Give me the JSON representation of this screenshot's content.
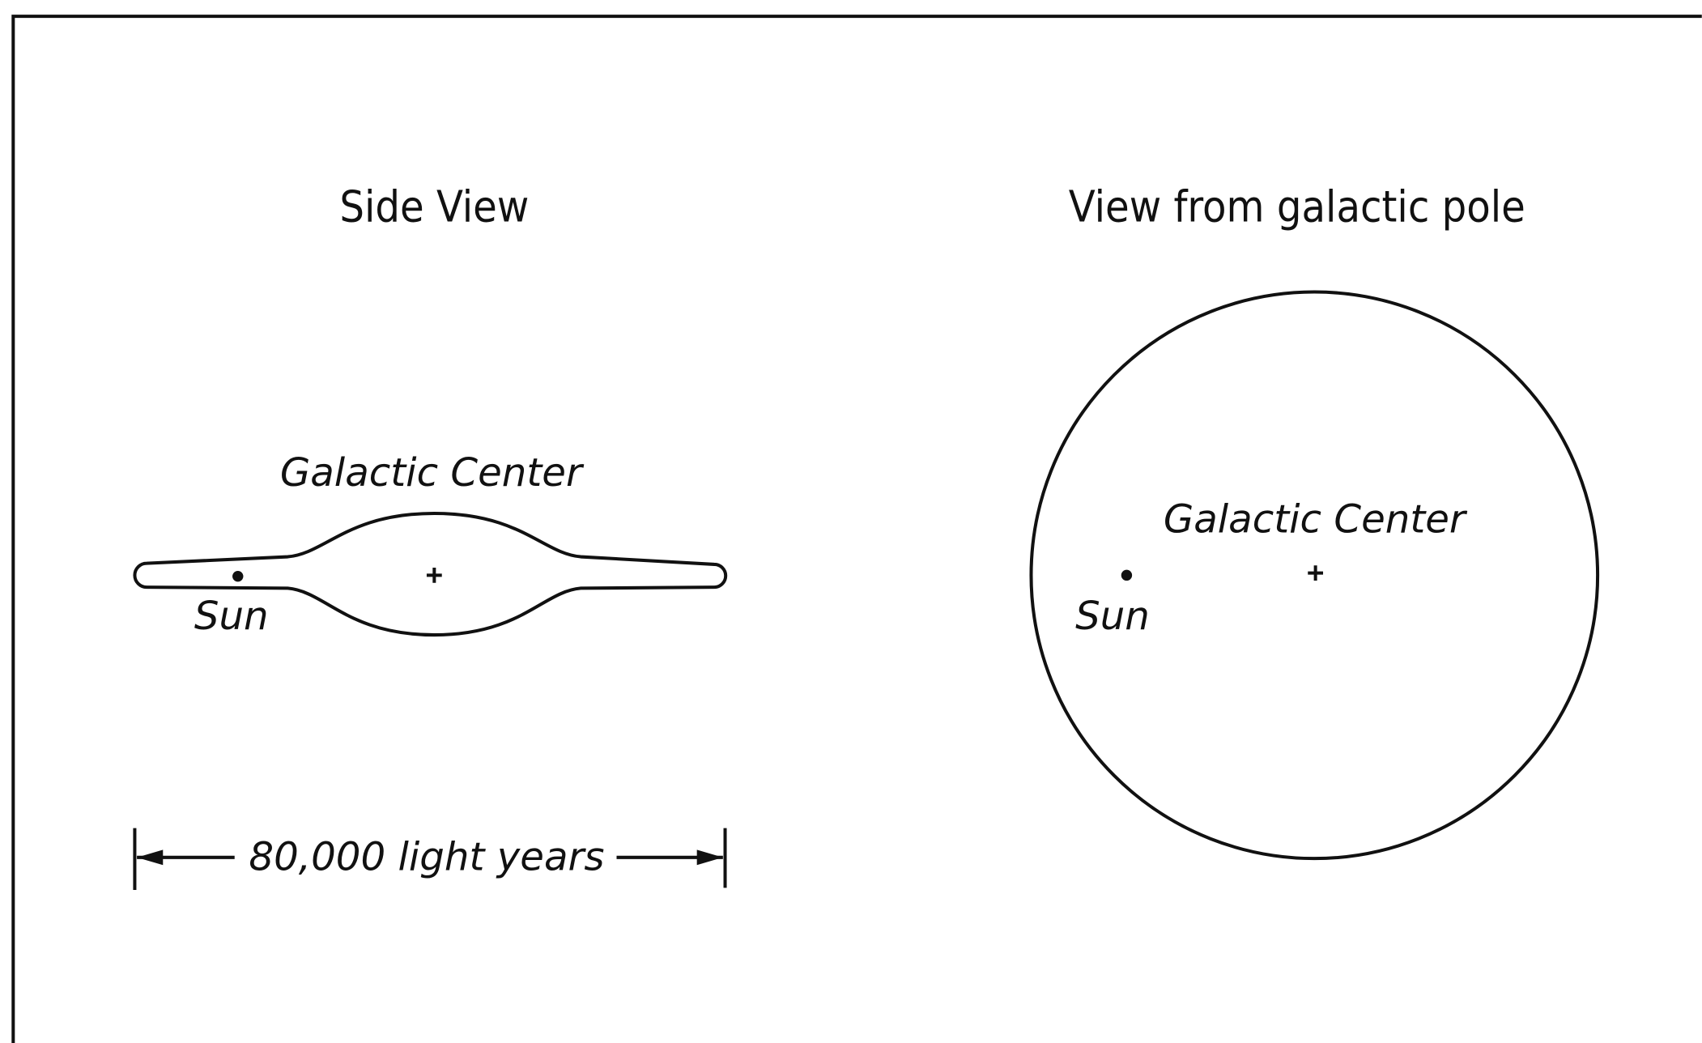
{
  "side_view": {
    "title": "Side View",
    "center_label": "Galactic Center",
    "sun_label": "Sun",
    "scale_label": "80,000 light years"
  },
  "pole_view": {
    "title": "View from galactic pole",
    "center_label": "Galactic Center",
    "sun_label": "Sun"
  }
}
